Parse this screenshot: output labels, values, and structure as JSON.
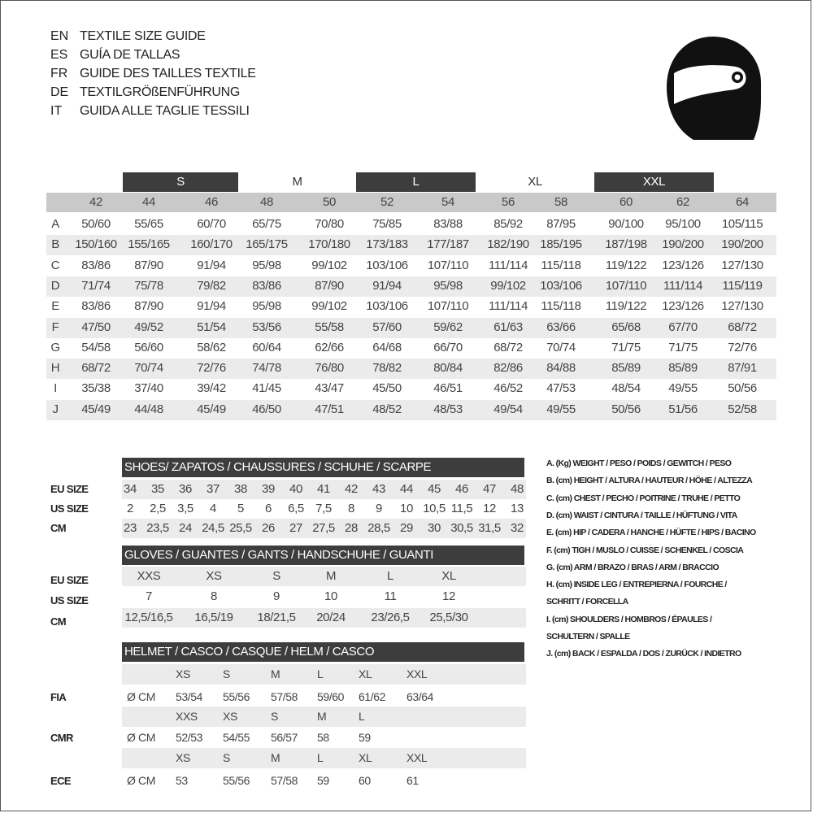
{
  "titles": [
    {
      "code": "EN",
      "text": "TEXTILE SIZE GUIDE"
    },
    {
      "code": "ES",
      "text": "GUÍA DE TALLAS"
    },
    {
      "code": "FR",
      "text": "GUIDE DES TAILLES TEXTILE"
    },
    {
      "code": "DE",
      "text": "TEXTILGRÖßENFÜHRUNG"
    },
    {
      "code": "IT",
      "text": "GUIDA ALLE TAGLIE TESSILI"
    }
  ],
  "helmet_icon": "helmet-icon",
  "textile": {
    "groups": [
      "S",
      "M",
      "L",
      "XL",
      "XXL"
    ],
    "sizes": [
      "42",
      "44",
      "46",
      "48",
      "50",
      "52",
      "54",
      "56",
      "58",
      "60",
      "62",
      "64"
    ],
    "rows": [
      {
        "label": "A",
        "values": [
          "50/60",
          "55/65",
          "60/70",
          "65/75",
          "70/80",
          "75/85",
          "83/88",
          "85/92",
          "87/95",
          "90/100",
          "95/100",
          "105/115"
        ]
      },
      {
        "label": "B",
        "values": [
          "150/160",
          "155/165",
          "160/170",
          "165/175",
          "170/180",
          "173/183",
          "177/187",
          "182/190",
          "185/195",
          "187/198",
          "190/200",
          "190/200"
        ]
      },
      {
        "label": "C",
        "values": [
          "83/86",
          "87/90",
          "91/94",
          "95/98",
          "99/102",
          "103/106",
          "107/110",
          "111/114",
          "115/118",
          "119/122",
          "123/126",
          "127/130"
        ]
      },
      {
        "label": "D",
        "values": [
          "71/74",
          "75/78",
          "79/82",
          "83/86",
          "87/90",
          "91/94",
          "95/98",
          "99/102",
          "103/106",
          "107/110",
          "111/114",
          "115/119"
        ]
      },
      {
        "label": "E",
        "values": [
          "83/86",
          "87/90",
          "91/94",
          "95/98",
          "99/102",
          "103/106",
          "107/110",
          "111/114",
          "115/118",
          "119/122",
          "123/126",
          "127/130"
        ]
      },
      {
        "label": "F",
        "values": [
          "47/50",
          "49/52",
          "51/54",
          "53/56",
          "55/58",
          "57/60",
          "59/62",
          "61/63",
          "63/66",
          "65/68",
          "67/70",
          "68/72"
        ]
      },
      {
        "label": "G",
        "values": [
          "54/58",
          "56/60",
          "58/62",
          "60/64",
          "62/66",
          "64/68",
          "66/70",
          "68/72",
          "70/74",
          "71/75",
          "71/75",
          "72/76"
        ]
      },
      {
        "label": "H",
        "values": [
          "68/72",
          "70/74",
          "72/76",
          "74/78",
          "76/80",
          "78/82",
          "80/84",
          "82/86",
          "84/88",
          "85/89",
          "85/89",
          "87/91"
        ]
      },
      {
        "label": "I",
        "values": [
          "35/38",
          "37/40",
          "39/42",
          "41/45",
          "43/47",
          "45/50",
          "46/51",
          "46/52",
          "47/53",
          "48/54",
          "49/55",
          "50/56"
        ]
      },
      {
        "label": "J",
        "values": [
          "45/49",
          "44/48",
          "45/49",
          "46/50",
          "47/51",
          "48/52",
          "48/53",
          "49/54",
          "49/55",
          "50/56",
          "51/56",
          "52/58"
        ]
      }
    ]
  },
  "shoes": {
    "title": "SHOES/ ZAPATOS / CHAUSSURES / SCHUHE / SCARPE",
    "rows": [
      {
        "label": "EU SIZE",
        "values": [
          "34",
          "35",
          "36",
          "37",
          "38",
          "39",
          "40",
          "41",
          "42",
          "43",
          "44",
          "45",
          "46",
          "47",
          "48"
        ]
      },
      {
        "label": "US SIZE",
        "values": [
          "2",
          "2,5",
          "3,5",
          "4",
          "5",
          "6",
          "6,5",
          "7,5",
          "8",
          "9",
          "10",
          "10,5",
          "11,5",
          "12",
          "13"
        ]
      },
      {
        "label": "CM",
        "values": [
          "23",
          "23,5",
          "24",
          "24,5",
          "25,5",
          "26",
          "27",
          "27,5",
          "28",
          "28,5",
          "29",
          "30",
          "30,5",
          "31,5",
          "32"
        ]
      }
    ]
  },
  "gloves": {
    "title": "GLOVES / GUANTES / GANTS / HANDSCHUHE / GUANTI",
    "rows": [
      {
        "label": "EU SIZE",
        "values": [
          "XXS",
          "XS",
          "S",
          "M",
          "L",
          "XL"
        ]
      },
      {
        "label": "US SIZE",
        "values": [
          "7",
          "8",
          "9",
          "10",
          "11",
          "12"
        ]
      },
      {
        "label": "CM",
        "values": [
          "12,5/16,5",
          "16,5/19",
          "18/21,5",
          "20/24",
          "23/26,5",
          "25,5/30"
        ]
      }
    ]
  },
  "helmet": {
    "title": "HELMET / CASCO / CASQUE / HELM / CASCO",
    "standards": [
      {
        "label": "FIA",
        "unit": "Ø CM",
        "sizes": [
          "XS",
          "S",
          "M",
          "L",
          "XL",
          "XXL"
        ],
        "values": [
          "53/54",
          "55/56",
          "57/58",
          "59/60",
          "61/62",
          "63/64"
        ]
      },
      {
        "label": "CMR",
        "unit": "Ø CM",
        "sizes": [
          "XXS",
          "XS",
          "S",
          "M",
          "L"
        ],
        "values": [
          "52/53",
          "54/55",
          "56/57",
          "58",
          "59"
        ]
      },
      {
        "label": "ECE",
        "unit": "Ø CM",
        "sizes": [
          "XS",
          "S",
          "M",
          "L",
          "XL",
          "XXL"
        ],
        "values": [
          "53",
          "55/56",
          "57/58",
          "59",
          "60",
          "61"
        ]
      }
    ]
  },
  "legend": [
    "A. (Kg) WEIGHT / PESO / POIDS / GEWITCH / PESO",
    "B. (cm) HEIGHT / ALTURA / HAUTEUR / HÖHE / ALTEZZA",
    "C. (cm) CHEST / PECHO / POITRINE / TRUHE / PETTO",
    "D. (cm) WAIST / CINTURA / TAILLE / HÜFTUNG / VITA",
    "E. (cm) HIP / CADERA / HANCHE / HÜFTE / HIPS /  BACINO",
    "F.  (cm) TIGH / MUSLO / CUISSE / SCHENKEL / COSCIA",
    "G. (cm) ARM  / BRAZO / BRAS / ARM / BRACCIO",
    "H. (cm) INSIDE LEG / ENTREPIERNA / FOURCHE /",
    "SCHRITT / FORCELLA",
    "I.  (cm) SHOULDERS / HOMBROS / ÉPAULES /",
    "SCHULTERN / SPALLE",
    "J. (cm) BACK / ESPALDA / DOS / ZURÜCK / INDIETRO"
  ]
}
